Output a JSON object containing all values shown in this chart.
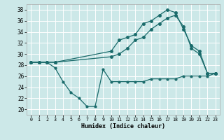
{
  "xlabel": "Humidex (Indice chaleur)",
  "xlim": [
    -0.5,
    23.5
  ],
  "ylim": [
    19,
    39
  ],
  "yticks": [
    20,
    22,
    24,
    26,
    28,
    30,
    32,
    34,
    36,
    38
  ],
  "xticks": [
    0,
    1,
    2,
    3,
    4,
    5,
    6,
    7,
    8,
    9,
    10,
    11,
    12,
    13,
    14,
    15,
    16,
    17,
    18,
    19,
    20,
    21,
    22,
    23
  ],
  "bg_color": "#cce8e8",
  "line_color": "#1a6b6b",
  "grid_color": "#ffffff",
  "line1_x": [
    0,
    1,
    2,
    3,
    4,
    5,
    6,
    7,
    8,
    9,
    10,
    11,
    12,
    13,
    14,
    15,
    16,
    17,
    18,
    19,
    20,
    21,
    22,
    23
  ],
  "line1_y": [
    28.5,
    28.5,
    28.5,
    27.5,
    25.0,
    23.0,
    22.0,
    20.5,
    20.5,
    27.2,
    25.0,
    25.0,
    25.0,
    25.0,
    25.0,
    25.5,
    25.5,
    25.5,
    25.5,
    26.0,
    26.0,
    26.0,
    26.0,
    26.5
  ],
  "line2_x": [
    0,
    1,
    2,
    3,
    10,
    11,
    12,
    13,
    14,
    15,
    16,
    17,
    18,
    19,
    20,
    21,
    22,
    23
  ],
  "line2_y": [
    28.5,
    28.5,
    28.5,
    28.5,
    29.5,
    30.0,
    31.0,
    32.5,
    33.0,
    34.5,
    35.5,
    36.5,
    37.0,
    35.0,
    31.0,
    30.0,
    26.5,
    26.5
  ],
  "line3_x": [
    0,
    1,
    2,
    3,
    10,
    11,
    12,
    13,
    14,
    15,
    16,
    17,
    18,
    19,
    20,
    21,
    22,
    23
  ],
  "line3_y": [
    28.5,
    28.5,
    28.5,
    28.5,
    30.5,
    32.5,
    33.0,
    33.5,
    35.5,
    36.0,
    37.0,
    38.0,
    37.5,
    34.5,
    31.5,
    30.5,
    26.5,
    26.5
  ],
  "line1_ms": 2.0,
  "line2_ms": 2.5,
  "line3_ms": 2.5,
  "lw": 0.9,
  "xlabel_fontsize": 6.0,
  "ytick_fontsize": 5.5,
  "xtick_fontsize": 4.8
}
